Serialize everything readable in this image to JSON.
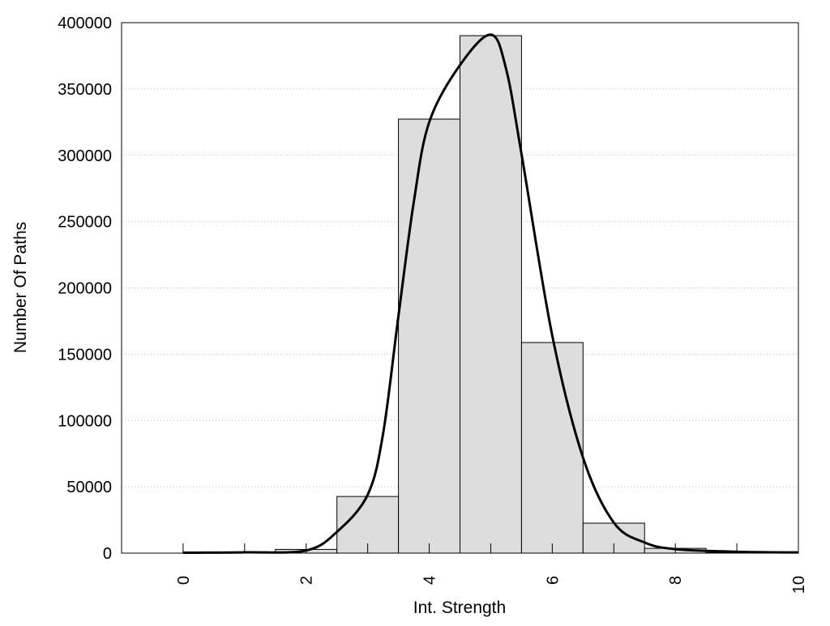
{
  "chart_data": {
    "type": "bar",
    "title": "",
    "xlabel": "Int. Strength",
    "ylabel": "Number Of Paths",
    "xlim": [
      -1,
      10
    ],
    "ylim": [
      0,
      400000
    ],
    "grid": "horizontal dotted",
    "xticks": [
      0,
      2,
      4,
      6,
      8,
      10
    ],
    "xtick_labels": [
      "0",
      "2",
      "4",
      "6",
      "8",
      "10"
    ],
    "minor_xticks": [
      1,
      3,
      5,
      7,
      9
    ],
    "yticks": [
      0,
      50000,
      100000,
      150000,
      200000,
      250000,
      300000,
      350000,
      400000
    ],
    "ytick_labels": [
      "0",
      "50000",
      "100000",
      "150000",
      "200000",
      "250000",
      "300000",
      "350000",
      "400000"
    ],
    "bar_color": "#dddddd",
    "bars": {
      "x": [
        1,
        2,
        3,
        4,
        5,
        6,
        7,
        8,
        9,
        10
      ],
      "values": [
        300,
        2800,
        42700,
        327300,
        390200,
        158800,
        22600,
        3600,
        300,
        100
      ]
    },
    "curve": {
      "x": [
        0,
        1,
        2,
        2.5,
        3,
        3.25,
        3.5,
        3.75,
        4,
        4.5,
        5,
        5.25,
        5.5,
        6,
        6.5,
        7,
        7.5,
        8,
        9,
        10
      ],
      "y": [
        300,
        600,
        2000,
        16000,
        44000,
        90000,
        179000,
        265000,
        325000,
        368000,
        391000,
        365000,
        301000,
        164000,
        72000,
        23000,
        8000,
        3000,
        1000,
        500
      ]
    }
  }
}
